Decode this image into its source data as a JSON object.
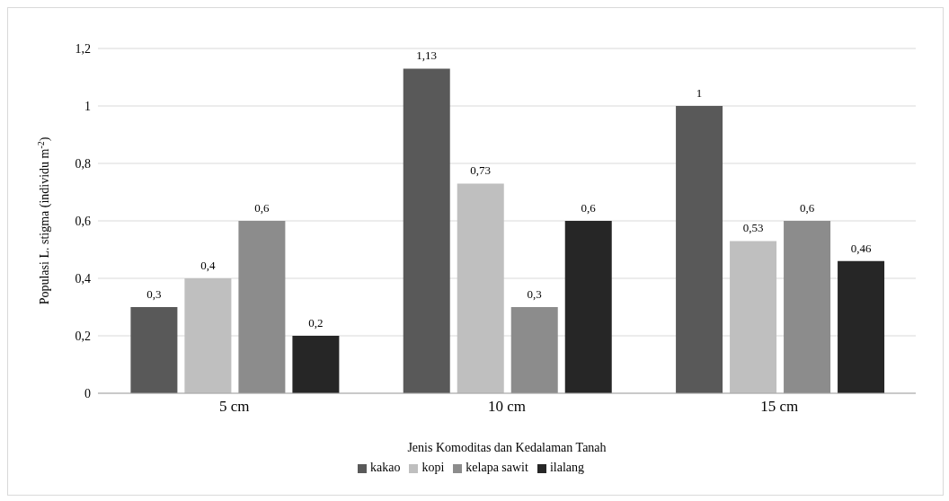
{
  "chart_data": {
    "type": "bar",
    "xlabel": "Jenis Komoditas dan Kedalaman Tanah",
    "ylabel": "Populasi L. stigma (individu m$^{-2}$)",
    "categories": [
      "5 cm",
      "10 cm",
      "15 cm"
    ],
    "series": [
      {
        "name": "kakao",
        "color": "#595959",
        "values": [
          0.3,
          1.13,
          1
        ],
        "value_labels": [
          "0,3",
          "1,13",
          "1"
        ]
      },
      {
        "name": "kopi",
        "color": "#bfbfbf",
        "values": [
          0.4,
          0.73,
          0.53
        ],
        "value_labels": [
          "0,4",
          "0,73",
          "0,53"
        ]
      },
      {
        "name": "kelapa sawit",
        "color": "#8c8c8c",
        "values": [
          0.6,
          0.3,
          0.6
        ],
        "value_labels": [
          "0,6",
          "0,3",
          "0,6"
        ]
      },
      {
        "name": "ilalang",
        "color": "#262626",
        "values": [
          0.2,
          0.6,
          0.46
        ],
        "value_labels": [
          "0,2",
          "0,6",
          "0,46"
        ]
      }
    ],
    "ylim": [
      0,
      1.2
    ],
    "yticks": [
      0,
      {
        "value": 0.2,
        "label": "0,2"
      },
      {
        "value": 0.4,
        "label": "0,4"
      },
      {
        "value": 0.6,
        "label": "0,6"
      },
      {
        "value": 0.8,
        "label": "0,8"
      },
      1,
      {
        "value": 1.2,
        "label": "1,2"
      }
    ],
    "grid": "y",
    "legend": "bottom"
  }
}
